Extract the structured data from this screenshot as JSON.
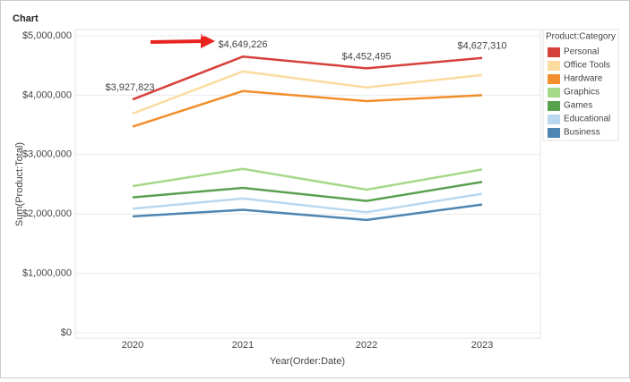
{
  "chart_data": {
    "type": "line",
    "title": "Chart",
    "x_label": "Year(Order:Date)",
    "y_label": "Sum(Product:Total)",
    "legend_title": "Product:Category",
    "legend": "right",
    "grid": true,
    "categories": [
      "2020",
      "2021",
      "2022",
      "2023"
    ],
    "ylim": [
      0,
      5000000
    ],
    "yticks": [
      {
        "value": 0,
        "label": "$0"
      },
      {
        "value": 1000000,
        "label": "$1,000,000"
      },
      {
        "value": 2000000,
        "label": "$2,000,000"
      },
      {
        "value": 3000000,
        "label": "$3,000,000"
      },
      {
        "value": 4000000,
        "label": "$4,000,000"
      },
      {
        "value": 5000000,
        "label": "$5,000,000"
      }
    ],
    "series": [
      {
        "name": "Personal",
        "color": "#d6403a",
        "values": [
          3927823,
          4649226,
          4452495,
          4627310
        ],
        "value_labels": [
          "$3,927,823",
          "$4,649,226",
          "$4,452,495",
          "$4,627,310"
        ]
      },
      {
        "name": "Office Tools",
        "color": "#fbdba0",
        "values": [
          3690000,
          4400000,
          4130000,
          4340000
        ]
      },
      {
        "name": "Hardware",
        "color": "#f28e2b",
        "values": [
          3470000,
          4070000,
          3900000,
          4000000
        ]
      },
      {
        "name": "Graphics",
        "color": "#a6d88a",
        "values": [
          2470000,
          2760000,
          2410000,
          2750000
        ]
      },
      {
        "name": "Games",
        "color": "#59a14f",
        "values": [
          2280000,
          2440000,
          2220000,
          2540000
        ]
      },
      {
        "name": "Educational",
        "color": "#b9d8ef",
        "values": [
          2090000,
          2260000,
          2030000,
          2340000
        ]
      },
      {
        "name": "Business",
        "color": "#4e85b1",
        "values": [
          1960000,
          2070000,
          1900000,
          2160000
        ]
      }
    ]
  }
}
